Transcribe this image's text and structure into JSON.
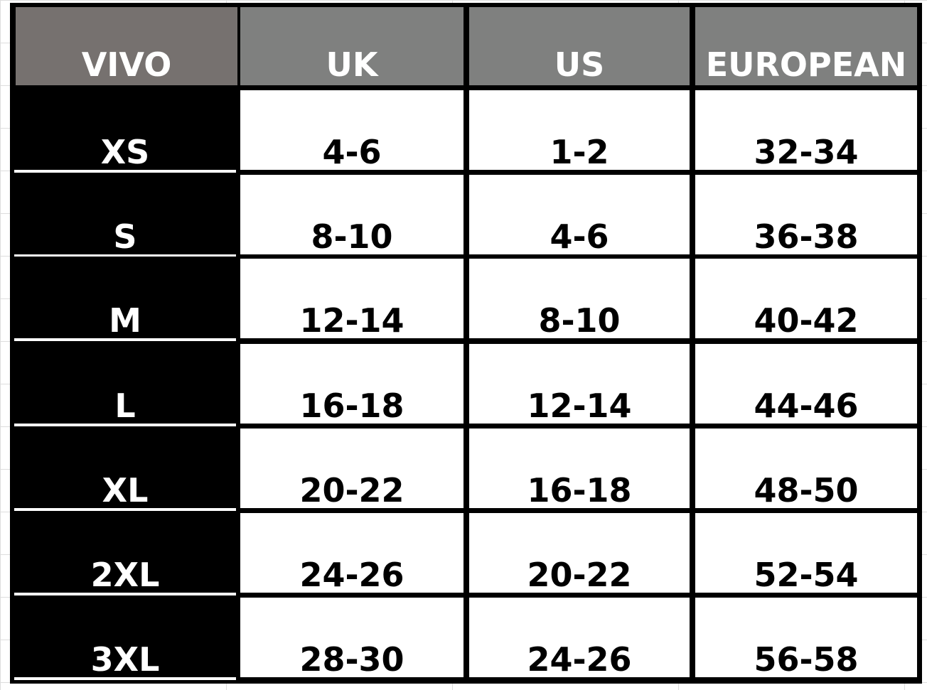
{
  "colors": {
    "brand_header": "#76716f",
    "header": "#7f807f",
    "size_col": "#000000",
    "value_bg": "#ffffff"
  },
  "table": {
    "headers": [
      "VIVO",
      "UK",
      "US",
      "EUROPEAN"
    ],
    "rows": [
      [
        "XS",
        "4-6",
        "1-2",
        "32-34"
      ],
      [
        "S",
        "8-10",
        "4-6",
        "36-38"
      ],
      [
        "M",
        "12-14",
        "8-10",
        "40-42"
      ],
      [
        "L",
        "16-18",
        "12-14",
        "44-46"
      ],
      [
        "XL",
        "20-22",
        "16-18",
        "48-50"
      ],
      [
        "2XL",
        "24-26",
        "20-22",
        "52-54"
      ],
      [
        "3XL",
        "28-30",
        "24-26",
        "56-58"
      ]
    ]
  }
}
